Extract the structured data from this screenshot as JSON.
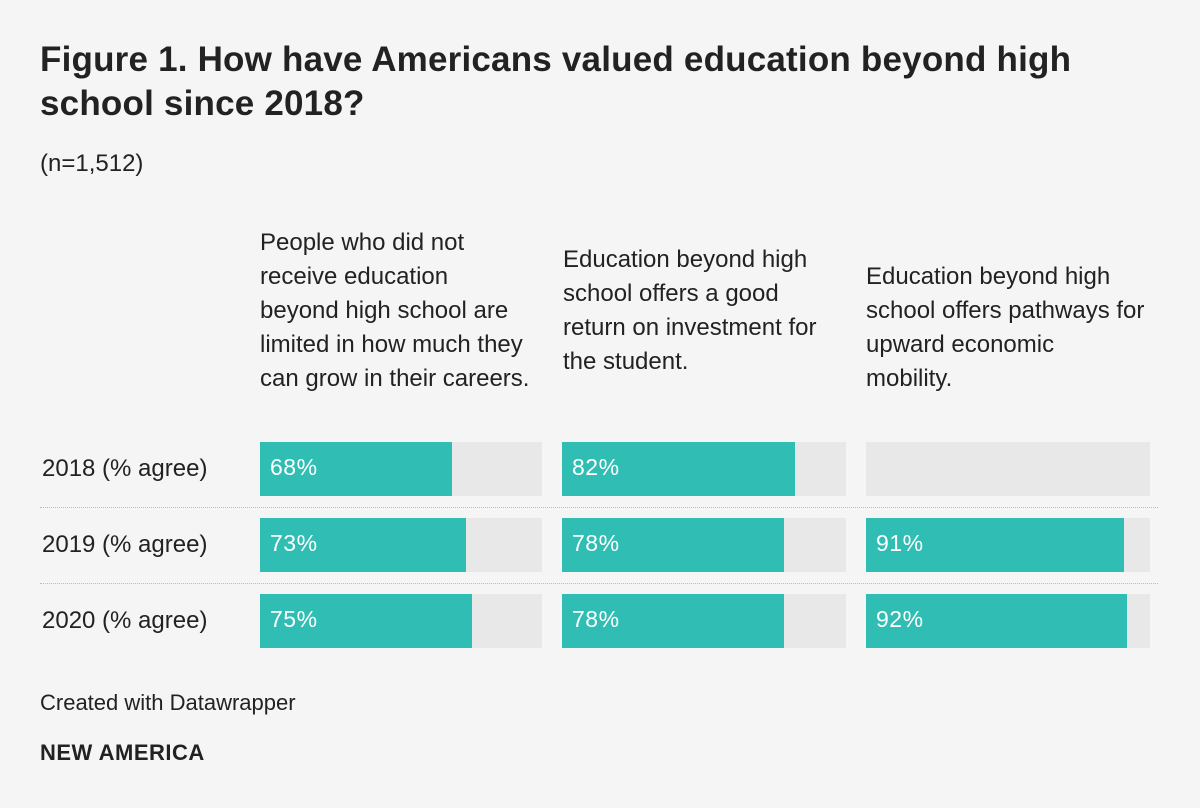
{
  "chart_data": {
    "type": "bar",
    "title": "Figure 1. How have Americans valued education beyond high school since 2018?",
    "subtitle": "(n=1,512)",
    "categories": [
      "2018 (% agree)",
      "2019 (% agree)",
      "2020 (% agree)"
    ],
    "series": [
      {
        "name": "People who did not receive education beyond high school are limited in how much they can grow in their careers.",
        "values": [
          68,
          73,
          75
        ],
        "labels": [
          "68%",
          "73%",
          "75%"
        ]
      },
      {
        "name": "Education beyond high school offers a good return on investment for the student.",
        "values": [
          82,
          78,
          78
        ],
        "labels": [
          "82%",
          "78%",
          "78%"
        ]
      },
      {
        "name": "Education beyond high school offers pathways for upward economic mobility.",
        "values": [
          null,
          91,
          92
        ],
        "labels": [
          "",
          "91%",
          "92%"
        ]
      }
    ],
    "xlim": [
      0,
      100
    ],
    "colors": {
      "bar": "#30bdb3",
      "background": "#e8e8e8"
    }
  },
  "footer": {
    "credit": "Created with Datawrapper",
    "brand": "NEW AMERICA"
  }
}
